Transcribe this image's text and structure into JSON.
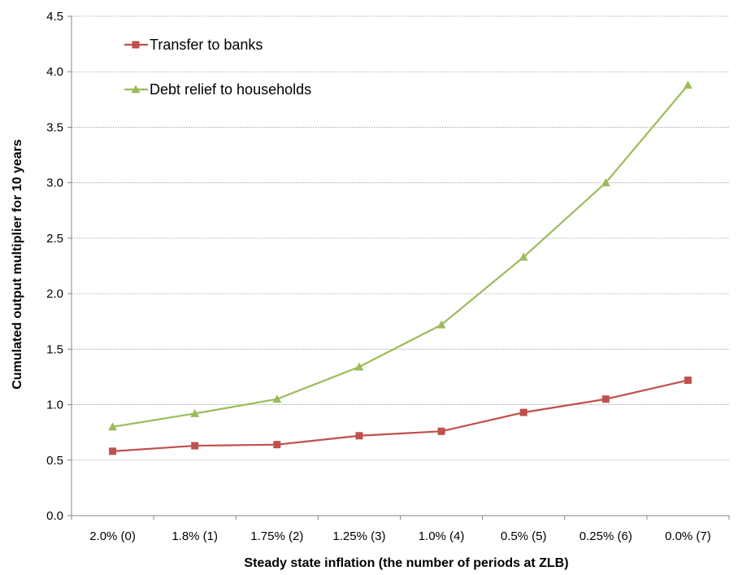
{
  "chart_data": {
    "type": "line",
    "title": "",
    "xlabel": "Steady state inflation (the number of periods at ZLB)",
    "ylabel": "Cumulated output multiplier for 10 years",
    "ylim": [
      0,
      4.5
    ],
    "yticks": [
      "0.0",
      "0.5",
      "1.0",
      "1.5",
      "2.0",
      "2.5",
      "3.0",
      "3.5",
      "4.0",
      "4.5"
    ],
    "grid": true,
    "legend_position": "top-left",
    "categories": [
      "2.0% (0)",
      "1.8% (1)",
      "1.75% (2)",
      "1.25% (3)",
      "1.0% (4)",
      "0.5% (5)",
      "0.25% (6)",
      "0.0% (7)"
    ],
    "series": [
      {
        "name": "Transfer to banks",
        "color": "#C0504D",
        "marker": "square",
        "values": [
          0.58,
          0.63,
          0.64,
          0.72,
          0.76,
          0.93,
          1.05,
          1.22
        ]
      },
      {
        "name": "Debt relief to households",
        "color": "#9BBB59",
        "marker": "triangle",
        "values": [
          0.8,
          0.92,
          1.05,
          1.34,
          1.72,
          2.33,
          3.0,
          3.88
        ]
      }
    ]
  }
}
